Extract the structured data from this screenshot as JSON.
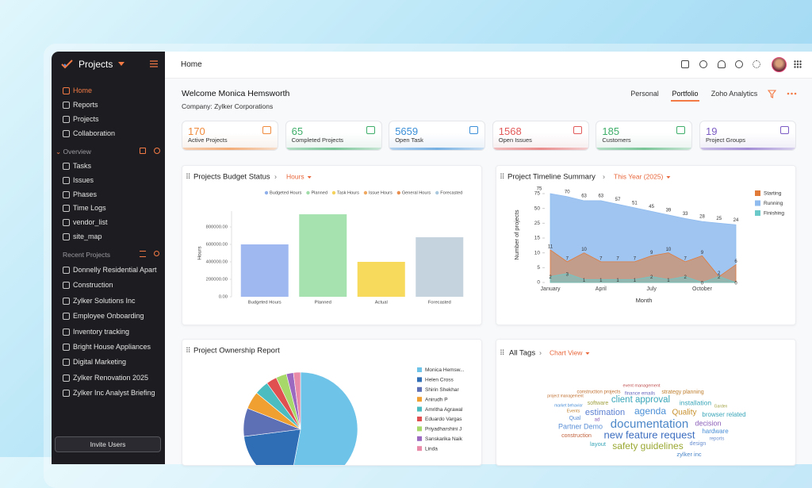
{
  "sidebar": {
    "app_name": "Projects",
    "nav": [
      "Home",
      "Reports",
      "Projects",
      "Collaboration"
    ],
    "active_nav": 0,
    "overview_title": "Overview",
    "overview": [
      "Tasks",
      "Issues",
      "Phases",
      "Time Logs",
      "vendor_list",
      "site_map"
    ],
    "recent_title": "Recent Projects",
    "recent": [
      "Donnelly Residential Apart",
      "Construction",
      "Zylker Solutions Inc",
      "Employee Onboarding",
      "Inventory tracking",
      "Bright House Appliances",
      "Digital Marketing",
      "Zylker Renovation 2025",
      "Zylker Inc Analyst Briefing"
    ],
    "invite": "Invite Users"
  },
  "header": {
    "title": "Home"
  },
  "welcome": {
    "greeting": "Welcome Monica Hemsworth",
    "company": "Company: Zylker Corporations",
    "tabs": [
      "Personal",
      "Portfolio",
      "Zoho Analytics"
    ],
    "active_tab": 1
  },
  "stats": [
    {
      "value": 170,
      "label": "Active Projects",
      "color": "#f08a3c"
    },
    {
      "value": 65,
      "label": "Completed Projects",
      "color": "#3fae6a"
    },
    {
      "value": 5659,
      "label": "Open Task",
      "color": "#3b8fd8"
    },
    {
      "value": 1568,
      "label": "Open Issues",
      "color": "#e35a5a"
    },
    {
      "value": 185,
      "label": "Customers",
      "color": "#3fae6a"
    },
    {
      "value": 19,
      "label": "Project Groups",
      "color": "#7c5cc4"
    }
  ],
  "chart_data": [
    {
      "type": "bar",
      "title": "Projects Budget Status",
      "filter": "Hours",
      "legend": [
        {
          "name": "Budgeted Hours",
          "color": "#8fb0ea"
        },
        {
          "name": "Planned",
          "color": "#9fdca8"
        },
        {
          "name": "Task Hours",
          "color": "#f5d25a"
        },
        {
          "name": "Issue Hours",
          "color": "#f0a860"
        },
        {
          "name": "General Hours",
          "color": "#e88e4e"
        },
        {
          "name": "Forecasted",
          "color": "#a9c8de"
        }
      ],
      "categories": [
        "Budgeted Hours",
        "Planned",
        "Actual",
        "Forecasted"
      ],
      "values": [
        600000,
        945000,
        400000,
        682000
      ],
      "colors": [
        "#9fb8f0",
        "#a6e2b0",
        "#f7d95c",
        "#c5d3df"
      ],
      "ylabel": "Hours",
      "ylim": [
        0,
        1000000
      ],
      "yticks": [
        {
          "value": 0,
          "label": "0.00"
        },
        {
          "value": 200000,
          "label": "200000.00"
        },
        {
          "value": 400000,
          "label": "400000.00"
        },
        {
          "value": 600000,
          "label": "600000.00"
        },
        {
          "value": 800000,
          "label": "800000.00"
        }
      ],
      "grid": false
    },
    {
      "type": "area",
      "title": "Project Timeline Summary",
      "filter": "This Year (2025)",
      "categories": [
        "January",
        null,
        null,
        "April",
        null,
        null,
        "July",
        null,
        null,
        "October",
        null,
        null
      ],
      "series": [
        {
          "name": "Starting",
          "color": "#e07b39",
          "values": [
            11,
            7,
            10,
            7,
            7,
            7,
            9,
            10,
            7,
            9,
            2,
            6
          ]
        },
        {
          "name": "Running",
          "color": "#8fbbee",
          "values": [
            75,
            70,
            63,
            63,
            57,
            51,
            45,
            39,
            33,
            28,
            25,
            24
          ]
        },
        {
          "name": "Finishing",
          "color": "#6cc9c9",
          "values": [
            2,
            3,
            1,
            1,
            1,
            1,
            2,
            1,
            2,
            0,
            2,
            0
          ]
        }
      ],
      "xlabel": "Month",
      "ylabel": "Number of projects",
      "ylim": [
        0,
        75
      ],
      "yticks": [
        0,
        5,
        10,
        15,
        25,
        50,
        75
      ],
      "legend": "right"
    },
    {
      "type": "pie",
      "title": "Project Ownership Report",
      "categories": [
        "Monica Hemsw...",
        "Helen Cross",
        "Shirin Shekhar",
        "Anirudh P",
        "Amritha Agrawal",
        "Eduardo Vargas",
        "Priyadharshini J",
        "Sanskarika Naik",
        "Linda"
      ],
      "values": [
        53,
        20,
        8,
        5,
        4,
        3,
        3,
        2,
        2
      ],
      "colors": [
        "#6ec3e8",
        "#2f6db5",
        "#5d6fb5",
        "#f0a030",
        "#4bbcc0",
        "#e05050",
        "#a6d86a",
        "#9b6ac0",
        "#e88aa8"
      ]
    }
  ],
  "tags_panel": {
    "title": "All Tags",
    "view": "Chart View",
    "tags": [
      "documentation",
      "new feature request",
      "client approval",
      "agenda",
      "Quality",
      "estimation",
      "safety guidelines",
      "Partner Demo",
      "decision",
      "installation",
      "hardware",
      "browser related",
      "software",
      "construction",
      "strategy planning",
      "construction projects",
      "finance emails",
      "event management",
      "layout",
      "design",
      "reports",
      "zylker inc",
      "Qual",
      "Events",
      "ad",
      "Garden",
      "market behavior",
      "project management"
    ]
  }
}
